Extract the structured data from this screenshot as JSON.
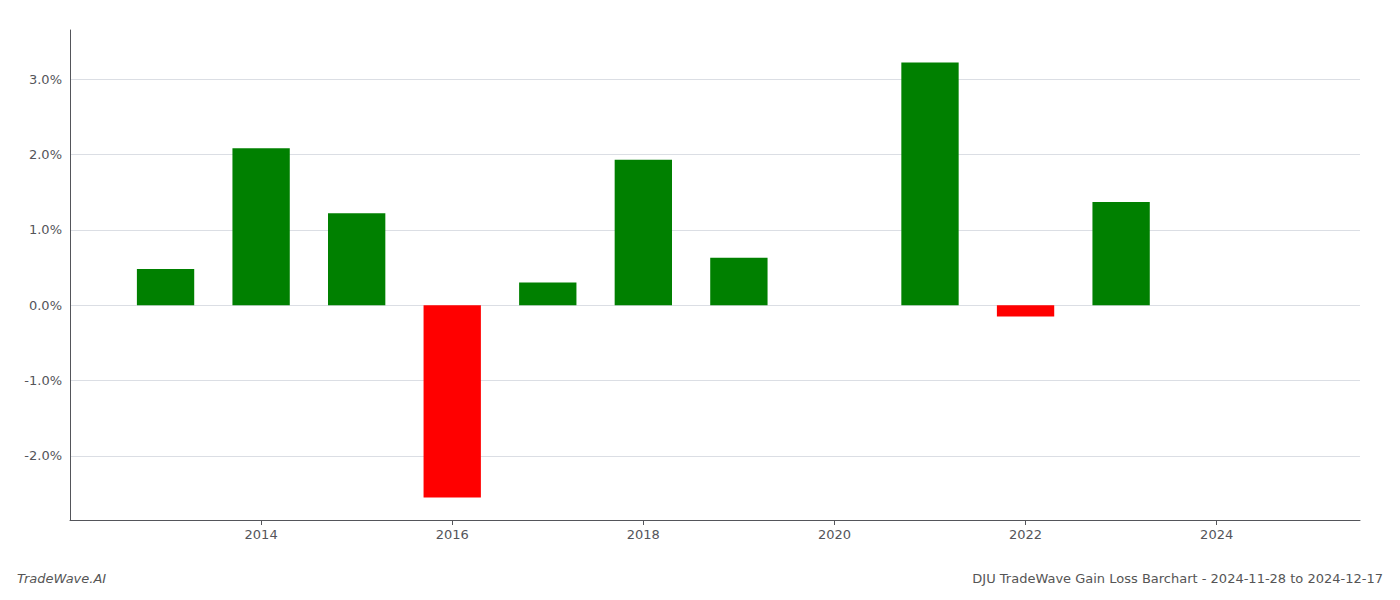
{
  "chart_data": {
    "type": "bar",
    "x": [
      2013,
      2014,
      2015,
      2016,
      2017,
      2018,
      2019,
      2021,
      2022,
      2023
    ],
    "values": [
      0.48,
      2.08,
      1.22,
      -2.55,
      0.3,
      1.93,
      0.63,
      3.22,
      -0.15,
      1.37
    ],
    "colors": [
      "#008000",
      "#008000",
      "#008000",
      "#ff0000",
      "#008000",
      "#008000",
      "#008000",
      "#008000",
      "#ff0000",
      "#008000"
    ],
    "xlim": [
      2012.0,
      2025.5
    ],
    "xticks": [
      2014,
      2016,
      2018,
      2020,
      2022,
      2024
    ],
    "ylim": [
      -2.85,
      3.65
    ],
    "yticks": [
      {
        "value": -2.0,
        "label": "-2.0%"
      },
      {
        "value": -1.0,
        "label": "-1.0%"
      },
      {
        "value": 0.0,
        "label": "0.0%"
      },
      {
        "value": 1.0,
        "label": "1.0%"
      },
      {
        "value": 2.0,
        "label": "2.0%"
      },
      {
        "value": 3.0,
        "label": "3.0%"
      }
    ],
    "grid": true,
    "annotations": [
      "TradeWave.AI",
      "DJU TradeWave Gain Loss Barchart - 2024-11-28 to 2024-12-17"
    ]
  }
}
